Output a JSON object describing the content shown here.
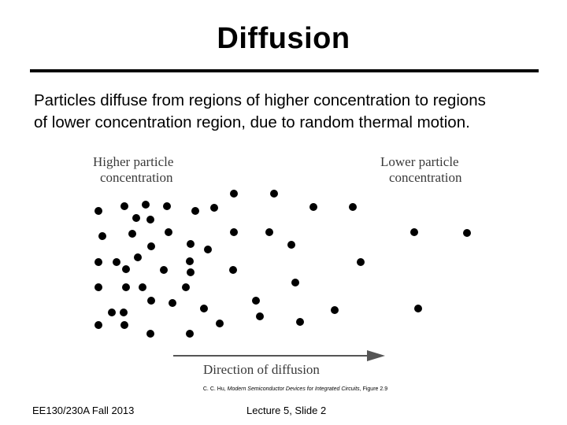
{
  "slide": {
    "title": "Diffusion",
    "body_line_1": "Particles diffuse from regions of higher concentration to regions",
    "body_line_2": "of lower concentration region, due to random thermal motion."
  },
  "figure": {
    "label_high_1": "Higher particle",
    "label_high_2": "concentration",
    "label_low_1": "Lower particle",
    "label_low_2": "concentration",
    "arrow_label": "Direction of diffusion",
    "caption_author": "C. C. Hu, ",
    "caption_book": "Modern Semiconductor Devices for Integrated Circuits",
    "caption_fig": ", Figure 2.9"
  },
  "footer": {
    "course": "EE130/230A Fall 2013",
    "lecture": "Lecture 5, Slide 2"
  }
}
